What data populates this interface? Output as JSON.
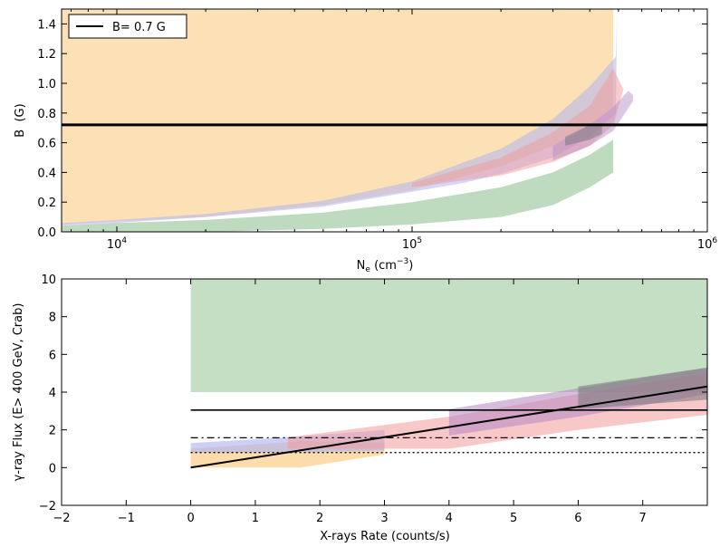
{
  "chart_data": [
    {
      "type": "area",
      "xscale": "log",
      "xlabel": "N_e (cm^-3)",
      "ylabel": "B  (G)",
      "xlim": [
        6500,
        1000000
      ],
      "ylim": [
        0.0,
        1.5
      ],
      "x_ticks": [
        {
          "value": 10000,
          "base": "10",
          "exp": "4"
        },
        {
          "value": 100000,
          "base": "10",
          "exp": "5"
        },
        {
          "value": 1000000,
          "base": "10",
          "exp": "6"
        }
      ],
      "y_ticks": [
        0.0,
        0.2,
        0.4,
        0.6,
        0.8,
        1.0,
        1.2,
        1.4
      ],
      "legend": {
        "placement": "top-left",
        "entries": [
          {
            "label": "B= 0.7 G",
            "color": "#000000"
          }
        ]
      },
      "hlines": [
        {
          "y": 0.72,
          "color": "#000000",
          "width": 3,
          "style": "solid"
        }
      ],
      "bands": [
        {
          "color": "#f9c97c",
          "opacity": 0.55,
          "upper": [
            [
              6500,
              1.5
            ],
            [
              480000,
              1.5
            ]
          ],
          "lower": [
            [
              6500,
              0.05
            ],
            [
              10000,
              0.07
            ],
            [
              20000,
              0.1
            ],
            [
              50000,
              0.18
            ],
            [
              100000,
              0.28
            ],
            [
              200000,
              0.44
            ],
            [
              300000,
              0.58
            ],
            [
              400000,
              0.72
            ],
            [
              480000,
              0.84
            ]
          ]
        },
        {
          "color": "#aab0f5",
          "opacity": 0.5,
          "upper": [
            [
              6500,
              0.06
            ],
            [
              10000,
              0.08
            ],
            [
              20000,
              0.12
            ],
            [
              50000,
              0.21
            ],
            [
              100000,
              0.34
            ],
            [
              200000,
              0.56
            ],
            [
              300000,
              0.76
            ],
            [
              400000,
              0.98
            ],
            [
              490000,
              1.18
            ],
            [
              495000,
              1.5
            ]
          ],
          "lower": [
            [
              6500,
              0.04
            ],
            [
              10000,
              0.06
            ],
            [
              20000,
              0.1
            ],
            [
              50000,
              0.17
            ],
            [
              100000,
              0.27
            ],
            [
              150000,
              0.33
            ],
            [
              200000,
              0.39
            ],
            [
              300000,
              0.5
            ],
            [
              400000,
              0.64
            ],
            [
              490000,
              0.8
            ]
          ]
        },
        {
          "color": "#f29a9a",
          "opacity": 0.5,
          "upper": [
            [
              100000,
              0.33
            ],
            [
              200000,
              0.5
            ],
            [
              300000,
              0.67
            ],
            [
              400000,
              0.85
            ],
            [
              480000,
              1.1
            ],
            [
              520000,
              0.96
            ]
          ],
          "lower": [
            [
              100000,
              0.3
            ],
            [
              200000,
              0.38
            ],
            [
              300000,
              0.47
            ],
            [
              400000,
              0.58
            ],
            [
              480000,
              0.72
            ]
          ]
        },
        {
          "color": "#b486c2",
          "opacity": 0.45,
          "upper": [
            [
              300000,
              0.58
            ],
            [
              400000,
              0.72
            ],
            [
              480000,
              0.84
            ],
            [
              540000,
              0.95
            ],
            [
              560000,
              0.92
            ]
          ],
          "lower": [
            [
              300000,
              0.48
            ],
            [
              400000,
              0.58
            ],
            [
              480000,
              0.68
            ],
            [
              560000,
              0.88
            ]
          ]
        },
        {
          "color": "#7fb87f",
          "opacity": 0.5,
          "upper": [
            [
              6500,
              0.04
            ],
            [
              10000,
              0.06
            ],
            [
              20000,
              0.08
            ],
            [
              50000,
              0.13
            ],
            [
              100000,
              0.2
            ],
            [
              200000,
              0.3
            ],
            [
              300000,
              0.4
            ],
            [
              400000,
              0.52
            ],
            [
              480000,
              0.62
            ]
          ],
          "lower": [
            [
              6500,
              0.0
            ],
            [
              20000,
              0.0
            ],
            [
              50000,
              0.02
            ],
            [
              100000,
              0.05
            ],
            [
              200000,
              0.1
            ],
            [
              300000,
              0.18
            ],
            [
              400000,
              0.3
            ],
            [
              480000,
              0.4
            ]
          ]
        },
        {
          "color": "#777777",
          "opacity": 0.5,
          "upper": [
            [
              330000,
              0.64
            ],
            [
              400000,
              0.72
            ],
            [
              440000,
              0.72
            ],
            [
              440000,
              0.72
            ]
          ],
          "lower": [
            [
              330000,
              0.58
            ],
            [
              400000,
              0.62
            ],
            [
              440000,
              0.66
            ]
          ]
        }
      ]
    },
    {
      "type": "area",
      "xlabel": "X-rays Rate (counts/s)",
      "ylabel": "γ-ray Flux (E> 400 GeV, Crab)",
      "xlim": [
        -2,
        8
      ],
      "ylim": [
        -2,
        10
      ],
      "x_ticks": [
        -2,
        -1,
        0,
        1,
        2,
        3,
        4,
        5,
        6,
        7
      ],
      "y_ticks": [
        -2,
        0,
        2,
        4,
        6,
        8,
        10
      ],
      "bands": [
        {
          "color": "#7fb87f",
          "opacity": 0.45,
          "upper": [
            [
              0,
              10
            ],
            [
              8,
              10
            ]
          ],
          "lower": [
            [
              0,
              4
            ],
            [
              8,
              4
            ]
          ]
        },
        {
          "color": "#f9c97c",
          "opacity": 0.65,
          "upper": [
            [
              0,
              1.0
            ],
            [
              1.7,
              1.4
            ],
            [
              3,
              1.3
            ]
          ],
          "lower": [
            [
              0,
              0
            ],
            [
              1.7,
              0
            ],
            [
              3,
              0.7
            ]
          ]
        },
        {
          "color": "#aab0f5",
          "opacity": 0.6,
          "upper": [
            [
              0,
              1.3
            ],
            [
              1.5,
              1.6
            ],
            [
              3,
              2.0
            ]
          ],
          "lower": [
            [
              0,
              0.8
            ],
            [
              1.5,
              0.8
            ],
            [
              3,
              0.9
            ]
          ]
        },
        {
          "color": "#f29a9a",
          "opacity": 0.55,
          "upper": [
            [
              1.5,
              1.6
            ],
            [
              4,
              2.7
            ],
            [
              6,
              3.9
            ],
            [
              8,
              5.0
            ]
          ],
          "lower": [
            [
              1.5,
              1.0
            ],
            [
              4,
              1.0
            ],
            [
              6,
              2.0
            ],
            [
              8,
              2.8
            ]
          ]
        },
        {
          "color": "#b486c2",
          "opacity": 0.55,
          "upper": [
            [
              4,
              3.1
            ],
            [
              6,
              4.2
            ],
            [
              8,
              5.3
            ]
          ],
          "lower": [
            [
              4,
              1.7
            ],
            [
              6,
              2.7
            ],
            [
              8,
              3.9
            ]
          ]
        },
        {
          "color": "#777777",
          "opacity": 0.55,
          "upper": [
            [
              6,
              4.3
            ],
            [
              8,
              5.3
            ]
          ],
          "lower": [
            [
              6,
              3.1
            ],
            [
              8,
              3.6
            ]
          ]
        }
      ],
      "lines": [
        {
          "points": [
            [
              0,
              0
            ],
            [
              8,
              4.3
            ]
          ],
          "color": "#000000",
          "width": 2,
          "style": "solid"
        },
        {
          "points": [
            [
              0,
              3.05
            ],
            [
              8,
              3.05
            ]
          ],
          "color": "#000000",
          "width": 1.6,
          "style": "solid"
        },
        {
          "points": [
            [
              0,
              1.58
            ],
            [
              8,
              1.58
            ]
          ],
          "color": "#000000",
          "width": 1.3,
          "style": "dashdot"
        },
        {
          "points": [
            [
              0,
              0.8
            ],
            [
              8,
              0.8
            ]
          ],
          "color": "#000000",
          "width": 1.3,
          "style": "dotted"
        }
      ]
    }
  ]
}
